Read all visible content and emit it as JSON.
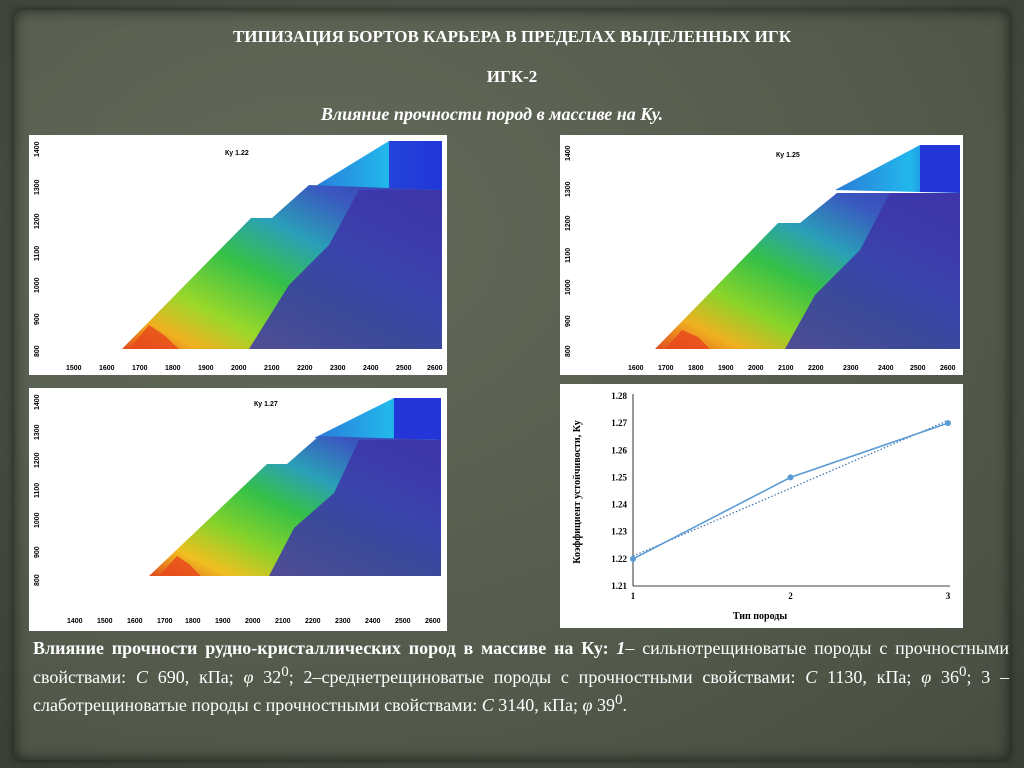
{
  "header": {
    "title": "ТИПИЗАЦИЯ БОРТОВ КАРЬЕРА В ПРЕДЕЛАХ ВЫДЕЛЕННЫХ ИГК",
    "subtitle": "ИГК-2",
    "caption": "Влияние прочности пород в массиве на Ку."
  },
  "panels": [
    {
      "ky_label": "Ку 1.22",
      "x_ticks": [
        "1500",
        "1600",
        "1700",
        "1800",
        "1900",
        "2000",
        "2100",
        "2200",
        "2300",
        "2400",
        "2500",
        "2600"
      ],
      "y_ticks": [
        "800",
        "900",
        "1000",
        "1100",
        "1200",
        "1300",
        "1400"
      ],
      "colors": {
        "rock": "#3d35a8",
        "hot": "#e8461c",
        "warm": "#f0d020",
        "green": "#3cc43c",
        "cyan": "#20a8e0"
      }
    },
    {
      "ky_label": "Ку 1.25",
      "x_ticks": [
        "1600",
        "1700",
        "1800",
        "1900",
        "2000",
        "2100",
        "2200",
        "2300",
        "2400",
        "2500",
        "2600"
      ],
      "y_ticks": [
        "800",
        "900",
        "1000",
        "1100",
        "1200",
        "1300",
        "1400"
      ]
    },
    {
      "ky_label": "Ку 1.27",
      "x_ticks": [
        "1400",
        "1500",
        "1600",
        "1700",
        "1800",
        "1900",
        "2000",
        "2100",
        "2200",
        "2300",
        "2400",
        "2500",
        "2600"
      ],
      "y_ticks": [
        "800",
        "900",
        "1000",
        "1100",
        "1200",
        "1300",
        "1400"
      ]
    }
  ],
  "chart_data": {
    "type": "line",
    "title": "",
    "xlabel": "Тип породы",
    "ylabel": "Коэффициент устойчивости, Ку",
    "x": [
      1,
      2,
      3
    ],
    "series": [
      {
        "values": [
          1.22,
          1.25,
          1.27
        ],
        "color": "#5b9bd5"
      }
    ],
    "trendline": {
      "style": "dotted",
      "values": [
        1.221,
        1.246,
        1.271
      ]
    },
    "ylim": [
      1.21,
      1.28
    ],
    "yticks": [
      "1.21",
      "1.22",
      "1.23",
      "1.24",
      "1.25",
      "1.26",
      "1.27",
      "1.28"
    ],
    "xticks": [
      "1",
      "2",
      "3"
    ],
    "grid": false
  },
  "bottom": {
    "lead": "Влияние прочности рудно-кристаллических пород в массиве на Ку:",
    "n1": "1",
    "t1": "– сильнотрещиноватые породы с прочностными свойствами:",
    "c1_letter": "С",
    "c1": "690, кПа;",
    "phi": "φ",
    "phi1": "32",
    "deg": "0",
    "t2": "; 2–среднетрещиноватые породы с прочностными свойствами:",
    "c2": "1130, кПа;",
    "phi2": "36",
    "t3": "; 3 –слаботрещиноватые породы с прочностными свойствами:",
    "c3": "3140, кПа;",
    "phi3": "39",
    "end": "."
  }
}
